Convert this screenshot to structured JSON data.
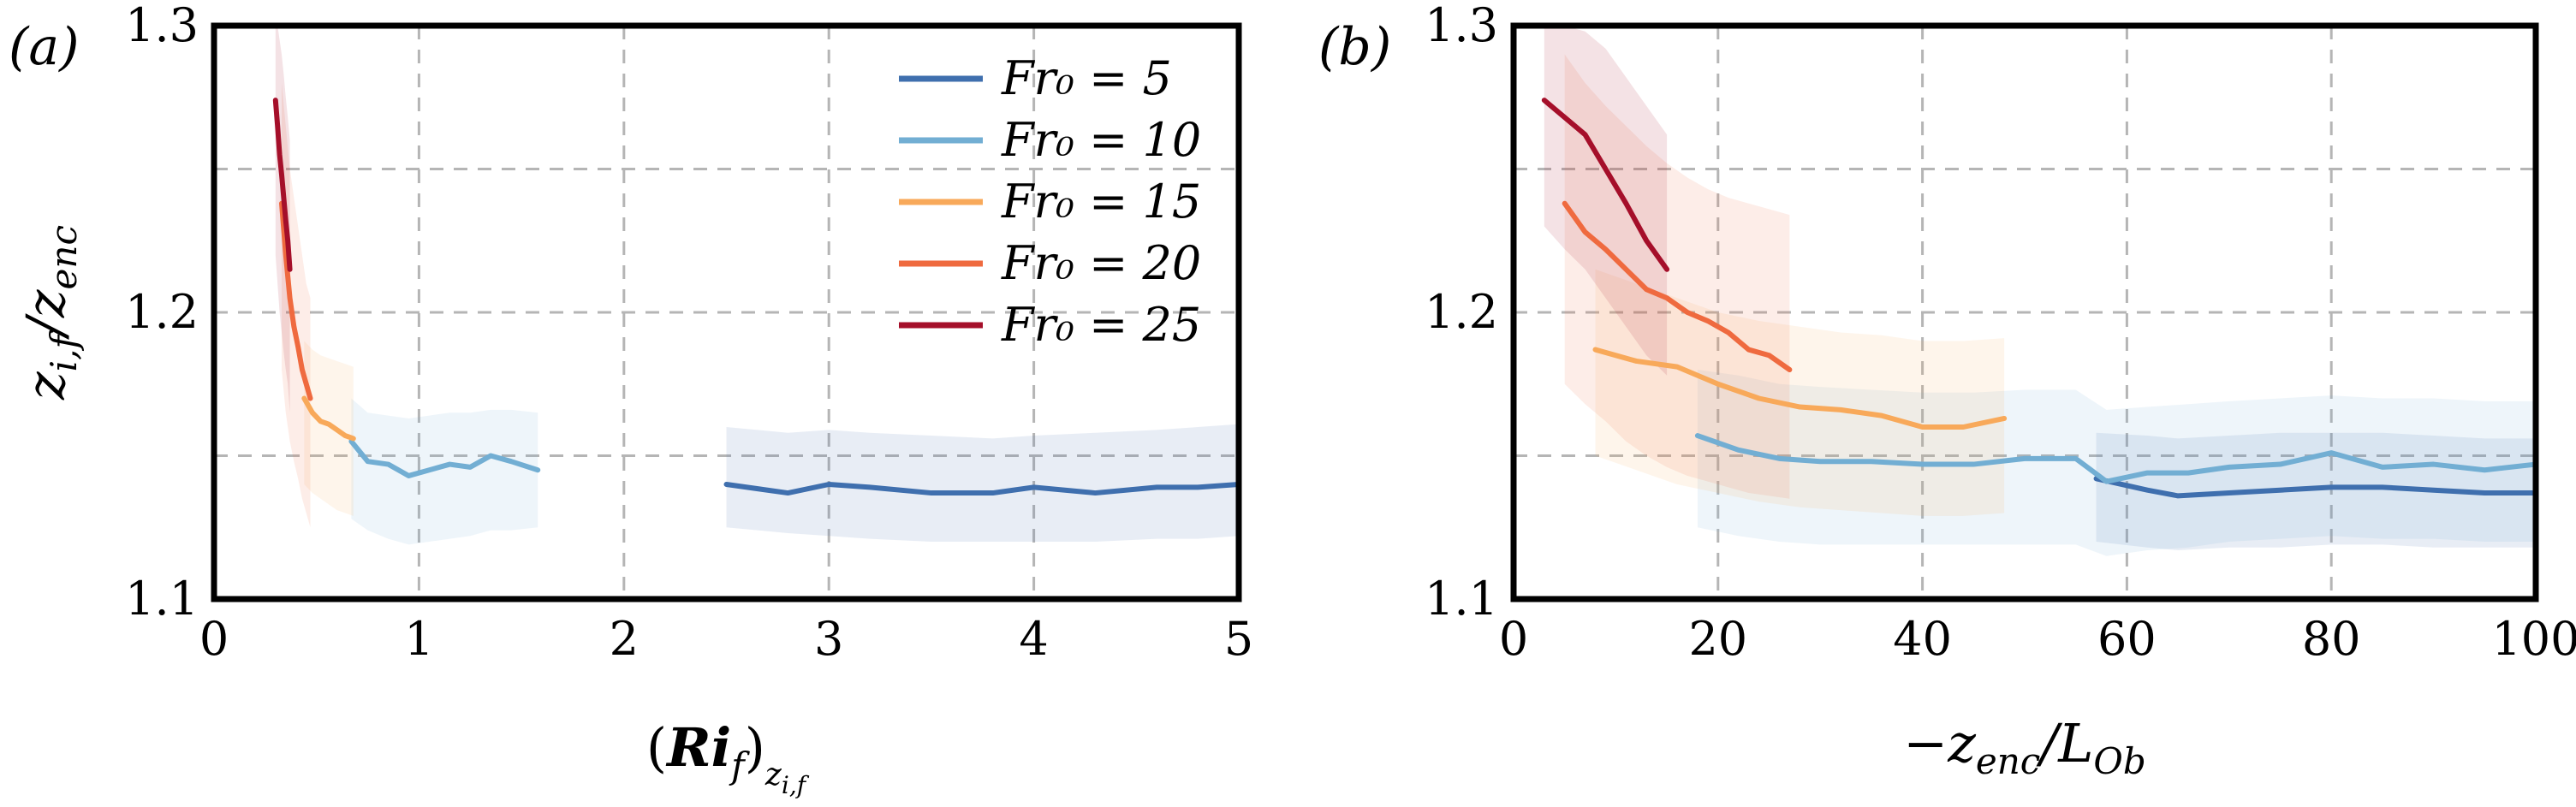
{
  "figure": {
    "panel_labels": [
      "(a)",
      "(b)"
    ]
  },
  "chart_data": [
    {
      "type": "line",
      "panel": "(a)",
      "xlabel": "(Ri_f)_{z_i,f}",
      "ylabel": "z_i,f / z_enc",
      "xlim": [
        0,
        5
      ],
      "ylim": [
        1.1,
        1.3
      ],
      "x_ticks": [
        0,
        1,
        2,
        3,
        4,
        5
      ],
      "y_ticks": [
        1.1,
        1.2,
        1.3
      ],
      "x_tick_labels": [
        "0",
        "1",
        "2",
        "3",
        "4",
        "5"
      ],
      "y_tick_labels": [
        "1.1",
        "1.2",
        "1.3"
      ],
      "grid": true,
      "legend": "top-right",
      "legend_entries": [
        "Fr₀ = 5",
        "Fr₀ = 10",
        "Fr₀ = 15",
        "Fr₀ = 20",
        "Fr₀ = 25"
      ],
      "series": [
        {
          "name": "Fr₀ = 5",
          "color": "#3f6fae",
          "x": [
            2.5,
            2.8,
            3.0,
            3.2,
            3.5,
            3.8,
            4.0,
            4.3,
            4.6,
            4.8,
            5.0
          ],
          "y": [
            1.14,
            1.137,
            1.14,
            1.139,
            1.137,
            1.137,
            1.139,
            1.137,
            1.139,
            1.139,
            1.14
          ],
          "band_lo": [
            1.125,
            1.123,
            1.122,
            1.121,
            1.12,
            1.12,
            1.12,
            1.12,
            1.121,
            1.121,
            1.122
          ],
          "band_hi": [
            1.16,
            1.158,
            1.159,
            1.158,
            1.157,
            1.156,
            1.157,
            1.158,
            1.159,
            1.16,
            1.161
          ]
        },
        {
          "name": "Fr₀ = 10",
          "color": "#72aed3",
          "x": [
            0.67,
            0.75,
            0.85,
            0.95,
            1.05,
            1.15,
            1.25,
            1.35,
            1.45,
            1.58
          ],
          "y": [
            1.155,
            1.148,
            1.147,
            1.143,
            1.145,
            1.147,
            1.146,
            1.15,
            1.148,
            1.145
          ],
          "band_lo": [
            1.128,
            1.124,
            1.121,
            1.119,
            1.12,
            1.121,
            1.122,
            1.124,
            1.124,
            1.125
          ],
          "band_hi": [
            1.17,
            1.165,
            1.164,
            1.163,
            1.164,
            1.165,
            1.165,
            1.166,
            1.166,
            1.165
          ]
        },
        {
          "name": "Fr₀ = 15",
          "color": "#f8a95a",
          "x": [
            0.44,
            0.48,
            0.52,
            0.56,
            0.6,
            0.64,
            0.68
          ],
          "y": [
            1.17,
            1.165,
            1.162,
            1.161,
            1.159,
            1.157,
            1.156
          ],
          "band_lo": [
            1.14,
            1.137,
            1.135,
            1.133,
            1.131,
            1.13,
            1.129
          ],
          "band_hi": [
            1.19,
            1.187,
            1.185,
            1.184,
            1.183,
            1.182,
            1.181
          ]
        },
        {
          "name": "Fr₀ = 20",
          "color": "#ef6a3f",
          "x": [
            0.33,
            0.35,
            0.37,
            0.39,
            0.41,
            0.43,
            0.45,
            0.47
          ],
          "y": [
            1.238,
            1.22,
            1.205,
            1.195,
            1.188,
            1.18,
            1.175,
            1.17
          ],
          "band_lo": [
            1.18,
            1.165,
            1.155,
            1.148,
            1.142,
            1.135,
            1.13,
            1.125
          ],
          "band_hi": [
            1.28,
            1.265,
            1.25,
            1.24,
            1.23,
            1.22,
            1.21,
            1.205
          ]
        },
        {
          "name": "Fr₀ = 25",
          "color": "#a50f2a",
          "x": [
            0.3,
            0.31,
            0.32,
            0.33,
            0.34,
            0.35,
            0.36,
            0.37
          ],
          "y": [
            1.274,
            1.265,
            1.255,
            1.248,
            1.24,
            1.232,
            1.225,
            1.215
          ],
          "band_lo": [
            1.22,
            1.21,
            1.2,
            1.193,
            1.186,
            1.18,
            1.175,
            1.165
          ],
          "band_hi": [
            1.3,
            1.3,
            1.295,
            1.29,
            1.283,
            1.275,
            1.268,
            1.26
          ]
        }
      ]
    },
    {
      "type": "line",
      "panel": "(b)",
      "xlabel": "−z_enc / L_Ob",
      "ylabel": "",
      "xlim": [
        0,
        100
      ],
      "ylim": [
        1.1,
        1.3
      ],
      "x_ticks": [
        0,
        20,
        40,
        60,
        80,
        100
      ],
      "y_ticks": [
        1.1,
        1.2,
        1.3
      ],
      "x_tick_labels": [
        "0",
        "20",
        "40",
        "60",
        "80",
        "100"
      ],
      "y_tick_labels": [
        "1.1",
        "1.2",
        "1.3"
      ],
      "grid": true,
      "series": [
        {
          "name": "Fr₀ = 5",
          "color": "#3f6fae",
          "x": [
            57,
            62,
            65,
            70,
            75,
            80,
            85,
            90,
            95,
            100
          ],
          "y": [
            1.142,
            1.138,
            1.136,
            1.137,
            1.138,
            1.139,
            1.139,
            1.138,
            1.137,
            1.137
          ],
          "band_lo": [
            1.12,
            1.118,
            1.117,
            1.118,
            1.118,
            1.119,
            1.119,
            1.118,
            1.118,
            1.118
          ],
          "band_hi": [
            1.158,
            1.157,
            1.156,
            1.157,
            1.158,
            1.158,
            1.158,
            1.157,
            1.156,
            1.156
          ]
        },
        {
          "name": "Fr₀ = 10",
          "color": "#72aed3",
          "x": [
            18,
            22,
            26,
            30,
            35,
            40,
            45,
            50,
            55,
            58,
            62,
            66,
            70,
            75,
            80,
            85,
            90,
            95,
            100
          ],
          "y": [
            1.157,
            1.152,
            1.149,
            1.148,
            1.148,
            1.147,
            1.147,
            1.149,
            1.149,
            1.141,
            1.144,
            1.144,
            1.146,
            1.147,
            1.151,
            1.146,
            1.147,
            1.145,
            1.147
          ],
          "band_lo": [
            1.125,
            1.122,
            1.12,
            1.119,
            1.119,
            1.119,
            1.119,
            1.119,
            1.119,
            1.115,
            1.117,
            1.118,
            1.12,
            1.121,
            1.122,
            1.121,
            1.121,
            1.12,
            1.12
          ],
          "band_hi": [
            1.18,
            1.178,
            1.175,
            1.174,
            1.173,
            1.172,
            1.172,
            1.173,
            1.173,
            1.166,
            1.167,
            1.168,
            1.169,
            1.17,
            1.171,
            1.17,
            1.17,
            1.169,
            1.169
          ]
        },
        {
          "name": "Fr₀ = 15",
          "color": "#f8a95a",
          "x": [
            8,
            12,
            16,
            20,
            24,
            28,
            32,
            36,
            40,
            44,
            48
          ],
          "y": [
            1.187,
            1.183,
            1.181,
            1.175,
            1.17,
            1.167,
            1.166,
            1.164,
            1.16,
            1.16,
            1.163
          ],
          "band_lo": [
            1.15,
            1.145,
            1.14,
            1.137,
            1.134,
            1.132,
            1.131,
            1.13,
            1.129,
            1.129,
            1.13
          ],
          "band_hi": [
            1.215,
            1.21,
            1.205,
            1.2,
            1.197,
            1.195,
            1.193,
            1.192,
            1.19,
            1.19,
            1.191
          ]
        },
        {
          "name": "Fr₀ = 20",
          "color": "#ef6a3f",
          "x": [
            5,
            7,
            9,
            11,
            13,
            15,
            17,
            19,
            21,
            23,
            25,
            27
          ],
          "y": [
            1.238,
            1.228,
            1.222,
            1.215,
            1.208,
            1.205,
            1.2,
            1.197,
            1.193,
            1.187,
            1.185,
            1.18
          ],
          "band_lo": [
            1.175,
            1.168,
            1.162,
            1.155,
            1.15,
            1.146,
            1.143,
            1.141,
            1.139,
            1.137,
            1.136,
            1.135
          ],
          "band_hi": [
            1.29,
            1.28,
            1.272,
            1.265,
            1.258,
            1.252,
            1.247,
            1.243,
            1.24,
            1.238,
            1.236,
            1.234
          ]
        },
        {
          "name": "Fr₀ = 25",
          "color": "#a50f2a",
          "x": [
            3,
            5,
            7,
            9,
            11,
            13,
            15
          ],
          "y": [
            1.274,
            1.268,
            1.262,
            1.25,
            1.238,
            1.225,
            1.215
          ],
          "band_lo": [
            1.23,
            1.222,
            1.215,
            1.205,
            1.195,
            1.185,
            1.178
          ],
          "band_hi": [
            1.3,
            1.3,
            1.298,
            1.292,
            1.282,
            1.272,
            1.262
          ]
        }
      ]
    }
  ]
}
